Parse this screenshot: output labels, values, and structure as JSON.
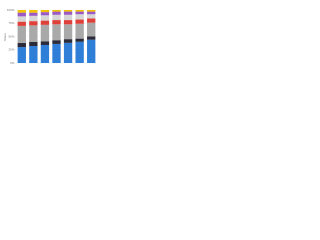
{
  "chart_data": {
    "type": "bar",
    "stacked": true,
    "y_label": "Share",
    "categories": [
      null,
      null,
      null,
      null,
      null,
      null,
      null
    ],
    "series": [
      {
        "color": "#2f7ed8",
        "values": [
          30,
          32,
          34,
          36,
          38,
          40,
          44
        ]
      },
      {
        "color": "#2b2b3a",
        "values": [
          8,
          8,
          7,
          7,
          7,
          6,
          6
        ]
      },
      {
        "color": "#a9a9a9",
        "values": [
          32,
          31,
          31,
          30,
          28,
          28,
          26
        ]
      },
      {
        "color": "#e0403a",
        "values": [
          8,
          8,
          8,
          8,
          8,
          8,
          8
        ]
      },
      {
        "color": "#d6d6d6",
        "values": [
          10,
          10,
          10,
          10,
          10,
          10,
          8
        ]
      },
      {
        "color": "#9b59c6",
        "values": [
          7,
          6,
          6,
          6,
          6,
          5,
          5
        ]
      },
      {
        "color": "#f2c200",
        "values": [
          5,
          5,
          4,
          3,
          3,
          3,
          3
        ]
      }
    ],
    "ylim": [
      0,
      100
    ],
    "yticks": [
      {
        "value": 0,
        "label": "0%"
      },
      {
        "value": 25,
        "label": "25%"
      },
      {
        "value": 50,
        "label": "50%"
      },
      {
        "value": 75,
        "label": "75%"
      },
      {
        "value": 100,
        "label": "100%"
      }
    ],
    "grid": true
  }
}
